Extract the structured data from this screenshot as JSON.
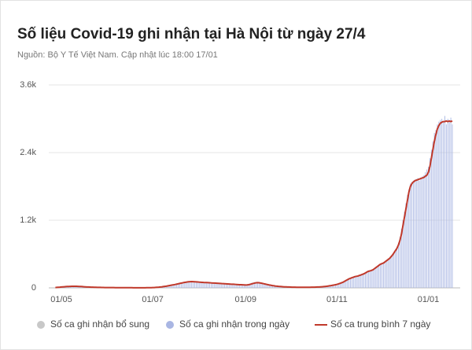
{
  "chart_data": {
    "type": "bar_line",
    "title": "Số liệu Covid-19 ghi nhận tại Hà Nội từ ngày 27/4",
    "subtitle": "Nguồn: Bộ Y Tế Việt Nam. Cập nhật lúc 18:00 17/01",
    "categories": [
      null,
      null,
      null,
      null,
      "01/05",
      null,
      null,
      null,
      null,
      null,
      null,
      null,
      null,
      null,
      null,
      null,
      null,
      null,
      null,
      null,
      null,
      null,
      null,
      null,
      null,
      null,
      null,
      null,
      null,
      null,
      null,
      null,
      null,
      null,
      null,
      null,
      null,
      null,
      null,
      null,
      null,
      null,
      null,
      null,
      null,
      null,
      null,
      null,
      null,
      null,
      null,
      null,
      null,
      null,
      null,
      null,
      null,
      null,
      null,
      null,
      null,
      null,
      null,
      null,
      null,
      "01/07",
      null,
      null,
      null,
      null,
      null,
      null,
      null,
      null,
      null,
      null,
      null,
      null,
      null,
      null,
      null,
      null,
      null,
      null,
      null,
      null,
      null,
      null,
      null,
      null,
      null,
      null,
      null,
      null,
      null,
      null,
      null,
      null,
      null,
      null,
      null,
      null,
      null,
      null,
      null,
      null,
      null,
      null,
      null,
      null,
      null,
      null,
      null,
      null,
      null,
      null,
      null,
      null,
      null,
      null,
      null,
      null,
      null,
      null,
      null,
      null,
      null,
      "01/09",
      null,
      null,
      null,
      null,
      null,
      null,
      null,
      null,
      null,
      null,
      null,
      null,
      null,
      null,
      null,
      null,
      null,
      null,
      null,
      null,
      null,
      null,
      null,
      null,
      null,
      null,
      null,
      null,
      null,
      null,
      null,
      null,
      null,
      null,
      null,
      null,
      null,
      null,
      null,
      null,
      null,
      null,
      null,
      null,
      null,
      null,
      null,
      null,
      null,
      null,
      null,
      null,
      null,
      null,
      null,
      null,
      null,
      null,
      null,
      null,
      "01/11",
      null,
      null,
      null,
      null,
      null,
      null,
      null,
      null,
      null,
      null,
      null,
      null,
      null,
      null,
      null,
      null,
      null,
      null,
      null,
      null,
      null,
      null,
      null,
      null,
      null,
      null,
      null,
      null,
      null,
      null,
      null,
      null,
      null,
      null,
      null,
      null,
      null,
      null,
      null,
      null,
      null,
      null,
      null,
      null,
      null,
      null,
      null,
      null,
      null,
      null,
      null,
      null,
      null,
      null,
      null,
      null,
      null,
      null,
      null,
      null,
      "01/01",
      null,
      null,
      null,
      null,
      null,
      null,
      null,
      null,
      null,
      null,
      null,
      null,
      null,
      null,
      null,
      null
    ],
    "series": [
      {
        "name": "Số ca ghi nhận bổ sung",
        "color": "#c8c8c8",
        "kind": "bar"
      },
      {
        "name": "Số ca ghi nhận trong ngày",
        "color": "#a9b6e3",
        "kind": "bar",
        "values": [
          3,
          10,
          8,
          15,
          12,
          20,
          25,
          18,
          30,
          22,
          28,
          35,
          20,
          33,
          25,
          30,
          18,
          24,
          20,
          15,
          22,
          12,
          16,
          10,
          14,
          9,
          12,
          8,
          10,
          6,
          9,
          5,
          8,
          4,
          7,
          8,
          3,
          6,
          4,
          7,
          2,
          5,
          4,
          3,
          6,
          2,
          4,
          3,
          1,
          5,
          2,
          3,
          1,
          2,
          3,
          1,
          2,
          4,
          1,
          2,
          3,
          2,
          4,
          3,
          5,
          4,
          8,
          10,
          12,
          15,
          18,
          20,
          25,
          30,
          28,
          40,
          38,
          50,
          45,
          60,
          55,
          70,
          68,
          80,
          85,
          95,
          90,
          105,
          100,
          115,
          108,
          120,
          105,
          110,
          100,
          98,
          105,
          95,
          100,
          90,
          98,
          92,
          88,
          95,
          85,
          90,
          80,
          88,
          78,
          84,
          75,
          80,
          70,
          78,
          68,
          74,
          65,
          70,
          60,
          68,
          58,
          64,
          55,
          60,
          52,
          58,
          50,
          55,
          60,
          70,
          80,
          90,
          95,
          100,
          96,
          88,
          92,
          80,
          75,
          70,
          60,
          58,
          50,
          45,
          40,
          36,
          32,
          28,
          26,
          24,
          22,
          20,
          18,
          16,
          15,
          14,
          14,
          12,
          14,
          10,
          13,
          9,
          12,
          8,
          11,
          10,
          9,
          12,
          10,
          13,
          11,
          14,
          12,
          15,
          16,
          18,
          17,
          22,
          24,
          26,
          30,
          32,
          38,
          40,
          46,
          50,
          56,
          62,
          70,
          75,
          85,
          95,
          110,
          120,
          135,
          150,
          165,
          175,
          190,
          185,
          210,
          200,
          220,
          230,
          235,
          250,
          260,
          270,
          290,
          300,
          290,
          320,
          330,
          350,
          370,
          390,
          410,
          430,
          440,
          450,
          470,
          490,
          520,
          530,
          560,
          600,
          640,
          680,
          720,
          800,
          900,
          1050,
          1200,
          1350,
          1500,
          1650,
          1750,
          1850,
          1880,
          1900,
          1920,
          1930,
          1950,
          1900,
          1960,
          1980,
          2000,
          2050,
          2100,
          2150,
          2300,
          2450,
          2600,
          2750,
          2800,
          2900,
          2950,
          2980,
          3000,
          2950,
          3050,
          2900,
          3000,
          2950,
          3020,
          2900
        ]
      },
      {
        "name": "Số ca trung bình 7 ngày",
        "color": "#c0392b",
        "kind": "line",
        "values": [
          5,
          8,
          10,
          12,
          15,
          18,
          20,
          22,
          24,
          25,
          26,
          27,
          28,
          28,
          27,
          26,
          25,
          24,
          22,
          20,
          18,
          16,
          15,
          14,
          13,
          12,
          11,
          10,
          9,
          8,
          8,
          7,
          7,
          6,
          6,
          6,
          5,
          5,
          5,
          5,
          4,
          4,
          4,
          4,
          4,
          3,
          3,
          3,
          3,
          3,
          3,
          3,
          2,
          2,
          2,
          2,
          2,
          2,
          2,
          2,
          2,
          3,
          3,
          3,
          4,
          5,
          6,
          8,
          10,
          12,
          15,
          18,
          22,
          26,
          30,
          35,
          40,
          45,
          50,
          55,
          60,
          66,
          72,
          78,
          84,
          90,
          96,
          100,
          104,
          108,
          110,
          112,
          110,
          108,
          106,
          104,
          102,
          100,
          98,
          96,
          95,
          94,
          92,
          90,
          88,
          86,
          85,
          84,
          82,
          80,
          78,
          76,
          75,
          74,
          72,
          70,
          68,
          66,
          65,
          64,
          62,
          60,
          58,
          56,
          55,
          54,
          52,
          50,
          52,
          56,
          62,
          70,
          78,
          85,
          90,
          92,
          90,
          86,
          80,
          74,
          68,
          62,
          56,
          50,
          45,
          40,
          36,
          32,
          29,
          26,
          24,
          22,
          20,
          18,
          17,
          16,
          15,
          14,
          13,
          12,
          12,
          11,
          11,
          10,
          10,
          10,
          10,
          10,
          10,
          11,
          11,
          12,
          12,
          13,
          14,
          15,
          16,
          18,
          20,
          22,
          25,
          28,
          32,
          36,
          40,
          45,
          50,
          56,
          62,
          70,
          80,
          90,
          100,
          115,
          130,
          145,
          160,
          170,
          180,
          190,
          200,
          205,
          210,
          220,
          230,
          240,
          250,
          265,
          280,
          295,
          300,
          310,
          320,
          340,
          360,
          380,
          400,
          420,
          430,
          440,
          460,
          480,
          500,
          520,
          550,
          580,
          620,
          660,
          700,
          760,
          840,
          950,
          1100,
          1250,
          1400,
          1550,
          1700,
          1800,
          1850,
          1880,
          1900,
          1910,
          1920,
          1930,
          1940,
          1950,
          1960,
          1980,
          2000,
          2050,
          2150,
          2300,
          2450,
          2600,
          2720,
          2820,
          2880,
          2920,
          2940,
          2950,
          2950,
          2960,
          2950,
          2960,
          2950,
          2960
        ]
      }
    ],
    "ylim": [
      0,
      3600
    ],
    "yticks": [
      0,
      {
        "value": 1200,
        "label": "1.2k"
      },
      {
        "value": 2400,
        "label": "2.4k"
      },
      {
        "value": 3600,
        "label": "3.6k"
      }
    ],
    "grid": true,
    "legend": "bottom"
  }
}
